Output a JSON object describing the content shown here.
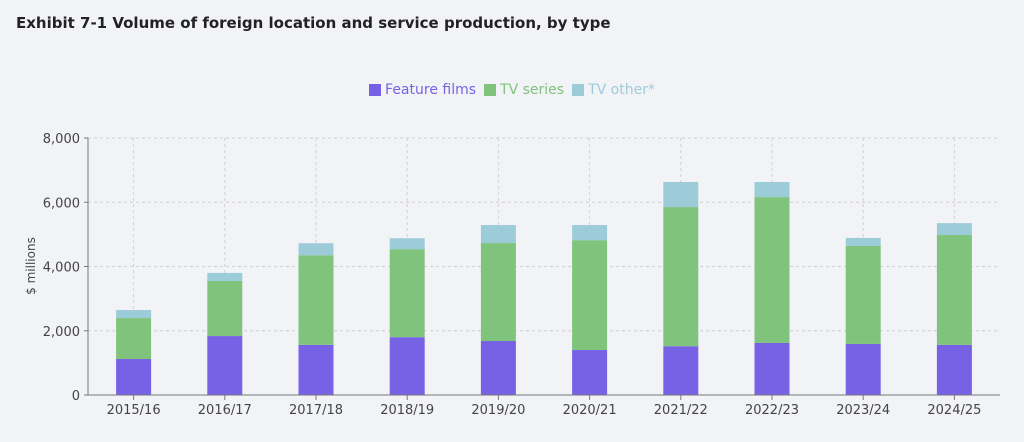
{
  "chart_data": {
    "type": "bar",
    "stacked": true,
    "title": "Exhibit 7-1 Volume of foreign location and service production, by type",
    "xlabel": "",
    "ylabel": "$ millions",
    "ylim": [
      0,
      8000
    ],
    "yticks": [
      "0",
      "2,000",
      "4,000",
      "6,000",
      "8,000"
    ],
    "ytick_values": [
      0,
      2000,
      4000,
      6000,
      8000
    ],
    "grid": true,
    "legend_position": "top-center",
    "categories": [
      "2015/16",
      "2016/17",
      "2017/18",
      "2018/19",
      "2019/20",
      "2020/21",
      "2021/22",
      "2022/23",
      "2023/24",
      "2024/25"
    ],
    "series": [
      {
        "name": "Feature films",
        "color": "#7762e6",
        "values": [
          1120,
          1835,
          1560,
          1800,
          1680,
          1400,
          1520,
          1620,
          1590,
          1560
        ]
      },
      {
        "name": "TV series",
        "color": "#80c37c",
        "values": [
          1275,
          1715,
          2790,
          2740,
          3050,
          3420,
          4330,
          4540,
          3050,
          3420
        ]
      },
      {
        "name": "TV other*",
        "color": "#9dccd9",
        "values": [
          250,
          250,
          375,
          340,
          560,
          470,
          780,
          470,
          250,
          370
        ]
      }
    ]
  }
}
